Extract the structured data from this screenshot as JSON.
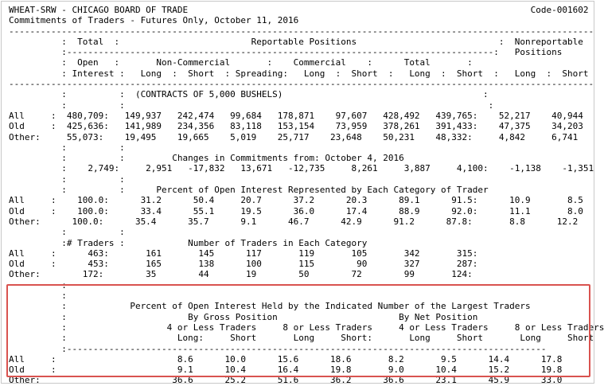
{
  "header": {
    "left1": "WHEAT-SRW - CHICAGO BOARD OF TRADE",
    "code": "Code-001602",
    "subtitle": "Commitments of Traders - Futures Only, October 11, 2016"
  },
  "lines": [
    "WHEAT-SRW - CHICAGO BOARD OF TRADE                                                                 Code-001602",
    "Commitments of Traders - Futures Only, October 11, 2016",
    "---------------------------------------------------------------------------------------------------------------",
    "          :  Total  :                         Reportable Positions                           :  Nonreportable",
    "          :---------------------------------------------------------------------------------:   Positions",
    "          :  Open   :       Non-Commercial       :    Commercial    :      Total       :",
    "          : Interest :   Long  :  Short  : Spreading:   Long  :  Short  :   Long  :  Short  :   Long  :  Short",
    "---------------------------------------------------------------------------------------------------------------",
    "          :          :  (CONTRACTS OF 5,000 BUSHELS)                                      :",
    "          :          :                                                                     :",
    "All     :  480,709:   149,937   242,474   99,684   178,871    97,607   428,492   439,765:    52,217    40,944",
    "Old     :  425,636:   141,989   234,356   83,118   153,154    73,959   378,261   391,433:    47,375    34,203",
    "Other:     55,073:    19,495    19,665    5,019    25,717    23,648    50,231    48,332:     4,842     6,741",
    "          :          :",
    "          :          :         Changes in Commitments from: October 4, 2016",
    "          :    2,749:     2,951   -17,832   13,671   -12,735     8,261     3,887     4,100:    -1,138    -1,351",
    "          :          :",
    "          :          :      Percent of Open Interest Represented by Each Category of Trader",
    "All     :    100.0:      31.2      50.4     20.7      37.2      20.3      89.1      91.5:      10.9       8.5",
    "Old     :    100.0:      33.4      55.1     19.5      36.0      17.4      88.9      92.0:      11.1       8.0",
    "Other:      100.0:      35.4      35.7      9.1      46.7      42.9      91.2      87.8:       8.8      12.2",
    "          :          :",
    "          :# Traders :            Number of Traders in Each Category",
    "All     :      463:       161       145      117       119       105       342       315:",
    "Old     :      453:       165       138      100       115        90       327       287:",
    "Other:        172:        35        44       19        50        72        99       124:",
    "          :",
    "          :",
    "          :            Percent of Open Interest Held by the Indicated Number of the Largest Traders",
    "          :                       By Gross Position                       By Net Position",
    "          :                   4 or Less Traders     8 or Less Traders     4 or Less Traders     8 or Less Traders",
    "          :                     Long:     Short       Long     Short:       Long     Short       Long     Short",
    "          :-------------------------------------------------------------------------------------------",
    "All     :                       8.6      10.0      15.6      18.6       8.2       9.5      14.4      17.8",
    "Old     :                       9.1      10.4      16.4      19.8       9.0      10.4      15.2      19.8",
    "Other:                         36.6      25.2      51.6      36.2      36.6      23.1      45.9      33.0"
  ]
}
